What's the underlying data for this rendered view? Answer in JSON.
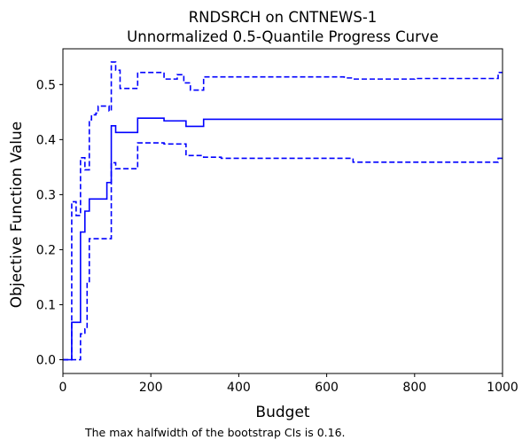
{
  "chart_data": {
    "type": "line",
    "title_line1": "RNDSRCH on CNTNEWS-1",
    "title_line2": "Unnormalized 0.5-Quantile Progress Curve",
    "xlabel": "Budget",
    "ylabel": "Objective Function Value",
    "xlim": [
      0,
      1000
    ],
    "ylim": [
      -0.025,
      0.565
    ],
    "xticks": [
      0,
      200,
      400,
      600,
      800,
      1000
    ],
    "xtick_labels": [
      "0",
      "200",
      "400",
      "600",
      "800",
      "1000"
    ],
    "yticks": [
      0.0,
      0.1,
      0.2,
      0.3,
      0.4,
      0.5
    ],
    "ytick_labels": [
      "0.0",
      "0.1",
      "0.2",
      "0.3",
      "0.4",
      "0.5"
    ],
    "grid": false,
    "legend": "none",
    "color": "#0000ff",
    "footnote": "The max halfwidth of the bootstrap CIs is 0.16.",
    "series": [
      {
        "style": "solid",
        "step": "post",
        "x": [
          0,
          20,
          40,
          50,
          60,
          100,
          110,
          120,
          170,
          230,
          280,
          320,
          1000
        ],
        "y": [
          0.0,
          0.068,
          0.232,
          0.27,
          0.292,
          0.322,
          0.425,
          0.413,
          0.439,
          0.434,
          0.424,
          0.437,
          0.437
        ]
      },
      {
        "style": "dashed",
        "step": "post",
        "x": [
          0,
          20,
          30,
          40,
          50,
          60,
          65,
          75,
          80,
          90,
          105,
          110,
          120,
          130,
          170,
          230,
          260,
          275,
          290,
          320,
          640,
          660,
          800,
          990,
          1000
        ],
        "y": [
          0.0,
          0.287,
          0.262,
          0.367,
          0.345,
          0.436,
          0.445,
          0.448,
          0.461,
          0.461,
          0.452,
          0.541,
          0.526,
          0.493,
          0.522,
          0.51,
          0.518,
          0.503,
          0.49,
          0.514,
          0.512,
          0.51,
          0.511,
          0.522,
          0.522
        ]
      },
      {
        "style": "dashed",
        "step": "post",
        "x": [
          0,
          40,
          50,
          55,
          60,
          110,
          120,
          170,
          230,
          280,
          320,
          360,
          660,
          990,
          1000
        ],
        "y": [
          0.0,
          0.047,
          0.056,
          0.14,
          0.22,
          0.358,
          0.347,
          0.394,
          0.392,
          0.371,
          0.368,
          0.366,
          0.359,
          0.366,
          0.366
        ]
      }
    ]
  }
}
